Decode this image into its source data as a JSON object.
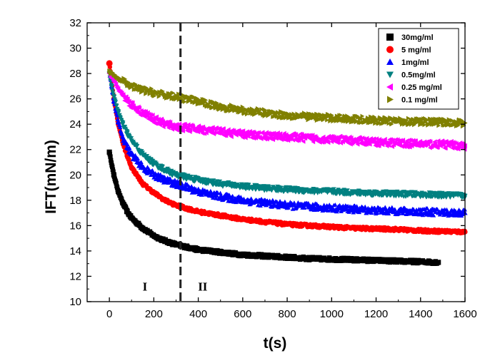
{
  "chart_data": {
    "type": "scatter",
    "xlabel": "t(s)",
    "ylabel": "IFT(mN/m)",
    "xlim": [
      -100,
      1600
    ],
    "ylim": [
      10,
      32
    ],
    "xticks": [
      0,
      200,
      400,
      600,
      800,
      1000,
      1200,
      1400,
      1600
    ],
    "yticks": [
      10,
      12,
      14,
      16,
      18,
      20,
      22,
      24,
      26,
      28,
      30,
      32
    ],
    "grid": false,
    "legend_position": "top-right",
    "vline": {
      "x": 320,
      "style": "dashed"
    },
    "regions": [
      {
        "label": "I",
        "x": 160,
        "y": 11.2
      },
      {
        "label": "II",
        "x": 420,
        "y": 11.2
      }
    ],
    "series": [
      {
        "name": "30mg/ml",
        "marker": "square",
        "color": "#000000",
        "noise": 0.25,
        "x": [
          0,
          20,
          40,
          60,
          80,
          100,
          150,
          200,
          250,
          300,
          400,
          500,
          600,
          700,
          800,
          900,
          1000,
          1100,
          1200,
          1300,
          1400,
          1480
        ],
        "y": [
          21.8,
          20.0,
          18.7,
          17.8,
          17.1,
          16.6,
          15.8,
          15.2,
          14.8,
          14.5,
          14.1,
          13.9,
          13.7,
          13.6,
          13.5,
          13.4,
          13.35,
          13.3,
          13.25,
          13.2,
          13.15,
          13.1
        ]
      },
      {
        "name": "5 mg/ml",
        "marker": "circle",
        "color": "#ff0000",
        "noise": 0.25,
        "x": [
          0,
          10,
          20,
          40,
          60,
          80,
          100,
          150,
          200,
          250,
          300,
          400,
          500,
          600,
          700,
          800,
          900,
          1000,
          1100,
          1200,
          1300,
          1400,
          1500,
          1600
        ],
        "y": [
          28.8,
          27.5,
          26.0,
          24.0,
          22.6,
          21.5,
          20.6,
          19.3,
          18.6,
          18.0,
          17.6,
          17.1,
          16.8,
          16.5,
          16.3,
          16.1,
          16.0,
          15.9,
          15.8,
          15.75,
          15.7,
          15.6,
          15.55,
          15.5
        ]
      },
      {
        "name": "1mg/ml",
        "marker": "triangle-up",
        "color": "#0000ff",
        "noise": 0.55,
        "x": [
          0,
          10,
          20,
          40,
          60,
          80,
          100,
          150,
          200,
          250,
          300,
          400,
          500,
          600,
          700,
          800,
          900,
          1000,
          1100,
          1200,
          1300,
          1400,
          1500,
          1600
        ],
        "y": [
          28.2,
          27.0,
          25.8,
          24.2,
          23.0,
          22.2,
          21.6,
          20.6,
          20.0,
          19.6,
          19.3,
          18.7,
          18.3,
          18.0,
          17.8,
          17.6,
          17.5,
          17.4,
          17.3,
          17.2,
          17.15,
          17.1,
          17.05,
          17.0
        ]
      },
      {
        "name": "0.5mg/ml",
        "marker": "triangle-down",
        "color": "#008080",
        "noise": 0.4,
        "x": [
          0,
          10,
          20,
          40,
          60,
          80,
          100,
          150,
          200,
          250,
          300,
          400,
          500,
          600,
          700,
          800,
          900,
          1000,
          1100,
          1200,
          1300,
          1400,
          1500,
          1600
        ],
        "y": [
          28.0,
          27.0,
          26.2,
          25.0,
          24.0,
          23.3,
          22.7,
          21.6,
          20.9,
          20.4,
          20.0,
          19.6,
          19.3,
          19.1,
          18.95,
          18.85,
          18.75,
          18.7,
          18.6,
          18.55,
          18.5,
          18.45,
          18.4,
          18.35
        ]
      },
      {
        "name": "0.25 mg/ml",
        "marker": "triangle-left",
        "color": "#ff00ff",
        "noise": 0.6,
        "x": [
          0,
          20,
          40,
          60,
          80,
          100,
          150,
          200,
          250,
          300,
          400,
          500,
          600,
          700,
          800,
          900,
          1000,
          1100,
          1200,
          1300,
          1400,
          1500,
          1600
        ],
        "y": [
          28.0,
          27.4,
          26.8,
          26.3,
          25.9,
          25.5,
          24.9,
          24.4,
          24.0,
          23.8,
          23.6,
          23.4,
          23.2,
          23.1,
          23.0,
          22.9,
          22.8,
          22.7,
          22.6,
          22.5,
          22.45,
          22.4,
          22.3
        ]
      },
      {
        "name": "0.1 mg/ml",
        "marker": "triangle-right",
        "color": "#808000",
        "noise": 0.55,
        "x": [
          0,
          20,
          40,
          60,
          80,
          100,
          150,
          200,
          250,
          300,
          400,
          500,
          600,
          700,
          800,
          900,
          1000,
          1100,
          1200,
          1300,
          1400,
          1500,
          1600
        ],
        "y": [
          28.2,
          27.9,
          27.6,
          27.4,
          27.2,
          27.0,
          26.7,
          26.5,
          26.3,
          26.2,
          25.8,
          25.4,
          25.1,
          24.9,
          24.7,
          24.6,
          24.5,
          24.4,
          24.3,
          24.25,
          24.2,
          24.15,
          24.1
        ]
      }
    ]
  }
}
